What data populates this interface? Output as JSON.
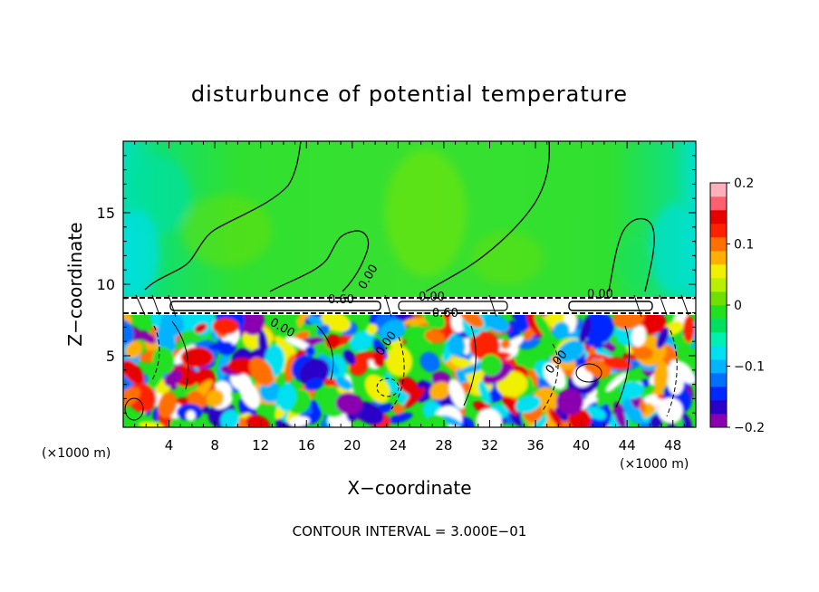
{
  "chart_data": {
    "type": "heatmap",
    "title": "disturbunce of potential temperature",
    "xlabel": "X−coordinate",
    "ylabel": "Z−coordinate",
    "x_unit_left": "(×1000 m)",
    "x_unit_right": "(×1000 m)",
    "xlim": [
      0,
      50
    ],
    "ylim": [
      0,
      20
    ],
    "x_ticks": [
      4,
      8,
      12,
      16,
      20,
      24,
      28,
      32,
      36,
      40,
      44,
      48
    ],
    "y_ticks": [
      5,
      10,
      15
    ],
    "colorbar": {
      "range": [
        -0.2,
        0.2
      ],
      "ticks": [
        0.2,
        0.1,
        0,
        -0.1,
        -0.2
      ],
      "tick_labels": [
        "0.2",
        "0.1",
        "0",
        "−0.1",
        "−0.2"
      ],
      "colors": [
        "#8a00b0",
        "#2a00c8",
        "#0028ff",
        "#0070ff",
        "#00b4ff",
        "#00e0f0",
        "#00f0b0",
        "#00e060",
        "#20e020",
        "#70e000",
        "#b8f000",
        "#f0f000",
        "#ffb000",
        "#ff7000",
        "#ff2000",
        "#e80000",
        "#ff6070",
        "#ffb0b8"
      ]
    },
    "contour_labels": [
      "0.00",
      "0.00",
      "0.00",
      "0.00",
      "0.00",
      "0.00",
      "0.60",
      "−0.60"
    ],
    "footer": "CONTOUR INTERVAL = 3.000E−01"
  }
}
